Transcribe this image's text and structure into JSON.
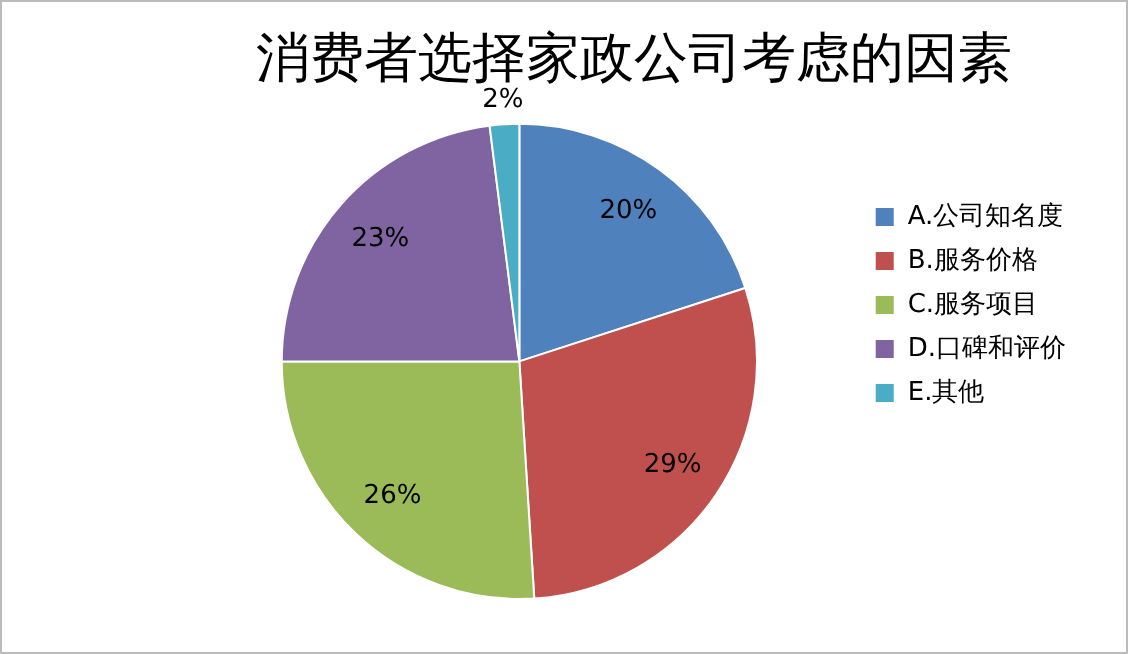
{
  "chart_data": {
    "type": "pie",
    "title": "消费者选择家政公司考虑的因素",
    "categories": [
      "A.公司知名度",
      "B.服务价格",
      "C.服务项目",
      "D.口碑和评价",
      "E.其他"
    ],
    "values": [
      20,
      29,
      26,
      23,
      2
    ],
    "colors": [
      "#4f81bd",
      "#c0504d",
      "#9bbb59",
      "#8064a2",
      "#4bacc6"
    ],
    "value_labels": [
      "20%",
      "29%",
      "26%",
      "23%",
      "2%"
    ],
    "legend": "right"
  }
}
